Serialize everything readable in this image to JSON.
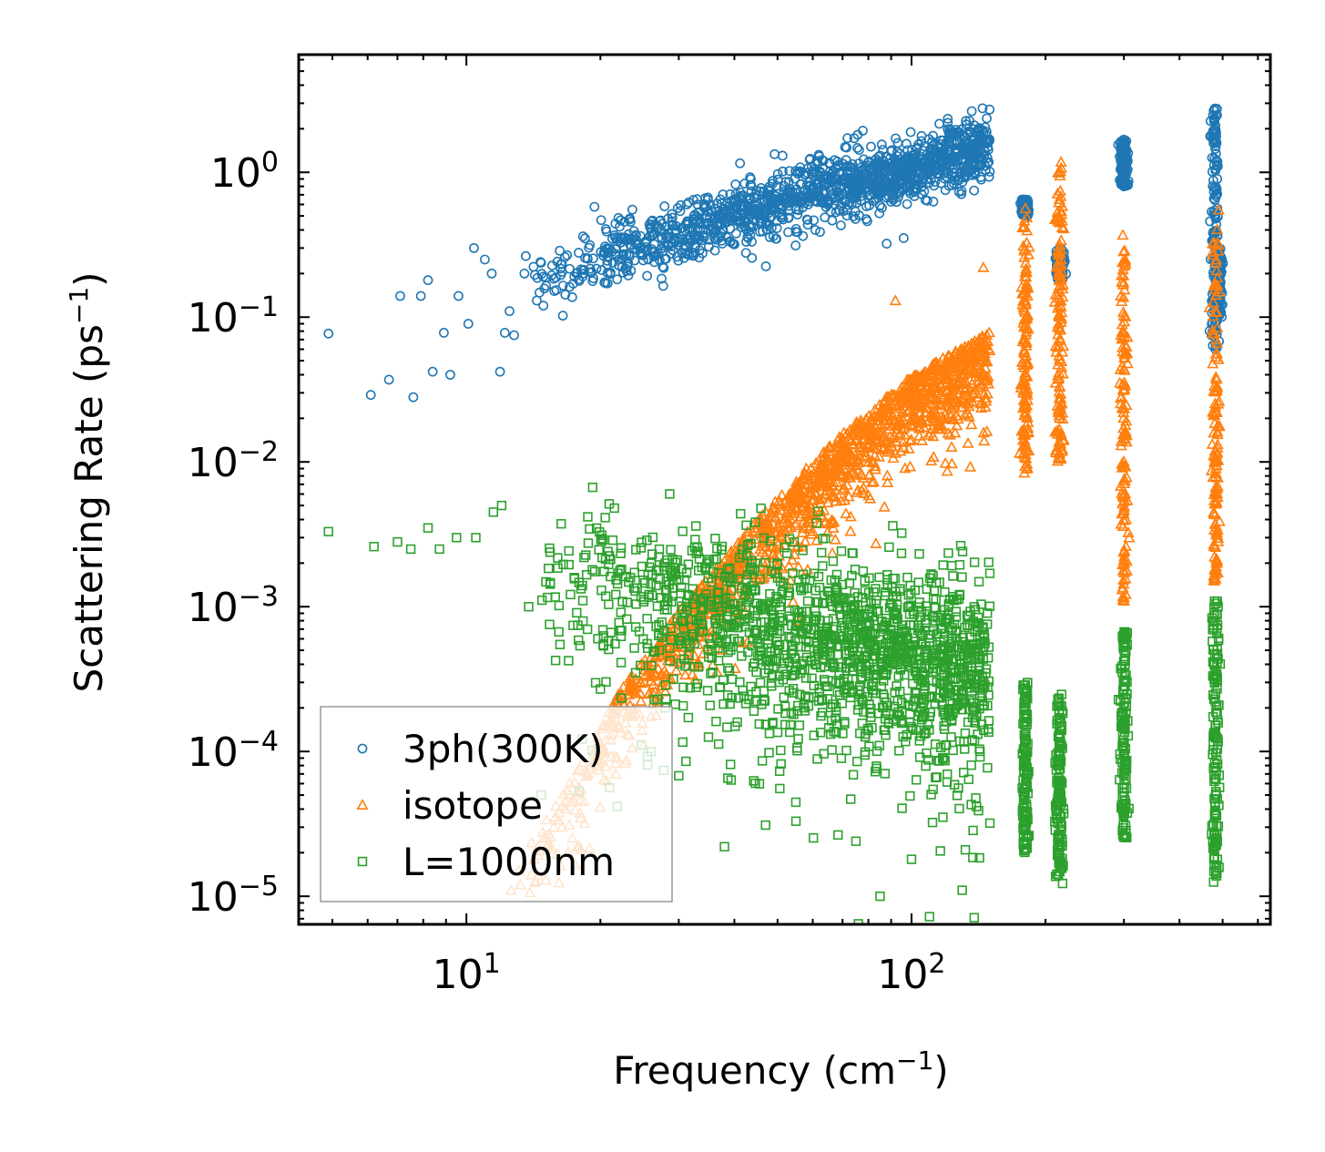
{
  "chart_data": {
    "type": "scatter",
    "title": "",
    "xlabel": "Frequency (cm",
    "xlabel_exp": "−1",
    "xlabel_end": ")",
    "ylabel": "Scattering Rate (ps",
    "ylabel_exp": "−1",
    "ylabel_end": ")",
    "x_scale": "log",
    "y_scale": "log",
    "xlim": [
      4.2,
      640
    ],
    "ylim": [
      6.4e-06,
      6.5
    ],
    "x_ticks": [
      {
        "value": 10,
        "base": "10",
        "exp": "1"
      },
      {
        "value": 100,
        "base": "10",
        "exp": "2"
      }
    ],
    "y_ticks": [
      {
        "value": 1,
        "base": "10",
        "exp": "0"
      },
      {
        "value": 0.1,
        "base": "10",
        "exp": "−1"
      },
      {
        "value": 0.01,
        "base": "10",
        "exp": "−2"
      },
      {
        "value": 0.001,
        "base": "10",
        "exp": "−3"
      },
      {
        "value": 0.0001,
        "base": "10",
        "exp": "−4"
      },
      {
        "value": 1e-05,
        "base": "10",
        "exp": "−5"
      }
    ],
    "legend_position": "lower-left",
    "series": [
      {
        "name": "3ph(300K)",
        "marker": "circle",
        "color": "#1f77b4",
        "trend": [
          [
            5,
            0.08
          ],
          [
            8,
            0.1
          ],
          [
            12,
            0.15
          ],
          [
            20,
            0.25
          ],
          [
            35,
            0.45
          ],
          [
            60,
            0.75
          ],
          [
            100,
            1.0
          ],
          [
            150,
            1.6
          ]
        ],
        "clusters": [
          {
            "x": 180,
            "y_range": [
              0.5,
              0.65
            ]
          },
          {
            "x": 216,
            "y_range": [
              0.18,
              0.3
            ]
          },
          {
            "x": 300,
            "y_range": [
              0.8,
              1.7
            ]
          },
          {
            "x": 480,
            "y_range": [
              0.06,
              2.8
            ]
          },
          {
            "x": 490,
            "y_range": [
              0.1,
              0.3
            ]
          }
        ],
        "points": [
          [
            4.9,
            0.077
          ],
          [
            6.1,
            0.029
          ],
          [
            6.7,
            0.037
          ],
          [
            7.1,
            0.14
          ],
          [
            7.6,
            0.028
          ],
          [
            7.9,
            0.14
          ],
          [
            8.2,
            0.18
          ],
          [
            8.4,
            0.042
          ],
          [
            8.9,
            0.078
          ],
          [
            9.2,
            0.04
          ],
          [
            9.6,
            0.14
          ],
          [
            10.1,
            0.09
          ],
          [
            10.4,
            0.3
          ],
          [
            11.0,
            0.25
          ],
          [
            11.4,
            0.2
          ],
          [
            11.9,
            0.042
          ],
          [
            12.2,
            0.078
          ],
          [
            12.5,
            0.11
          ],
          [
            12.8,
            0.075
          ],
          [
            13.5,
            0.2
          ]
        ]
      },
      {
        "name": "isotope",
        "marker": "triangle",
        "color": "#ff7f0e",
        "trend": [
          [
            12.5,
            1.1e-05
          ],
          [
            15,
            2.5e-05
          ],
          [
            18,
            6e-05
          ],
          [
            22,
            0.0002
          ],
          [
            30,
            0.0007
          ],
          [
            45,
            0.003
          ],
          [
            70,
            0.012
          ],
          [
            100,
            0.03
          ],
          [
            150,
            0.06
          ]
        ],
        "clusters": [
          {
            "x": 180,
            "y_range": [
              0.008,
              0.6
            ]
          },
          {
            "x": 215,
            "y_range": [
              0.01,
              1.2
            ]
          },
          {
            "x": 300,
            "y_range": [
              0.001,
              0.5
            ]
          },
          {
            "x": 482,
            "y_range": [
              0.0015,
              0.55
            ]
          }
        ],
        "points": [
          [
            12.6,
            1.1e-05
          ],
          [
            13.2,
            1.2e-05
          ],
          [
            14.0,
            1.4e-05
          ],
          [
            15.2,
            2.2e-05
          ],
          [
            16.4,
            3e-05
          ],
          [
            17.2,
            4.5e-05
          ],
          [
            58,
            0.009
          ],
          [
            92,
            0.13
          ],
          [
            145,
            0.22
          ],
          [
            490,
            0.55
          ]
        ]
      },
      {
        "name": "L=1000nm",
        "marker": "square",
        "color": "#2ca02c",
        "trend": [
          [
            5,
            0.0032
          ],
          [
            10,
            0.0028
          ],
          [
            20,
            0.0015
          ],
          [
            40,
            0.0009
          ],
          [
            80,
            0.0006
          ],
          [
            150,
            0.0004
          ]
        ],
        "clusters": [
          {
            "x": 180,
            "y_range": [
              2e-05,
              0.0003
            ]
          },
          {
            "x": 215,
            "y_range": [
              1.2e-05,
              0.00025
            ]
          },
          {
            "x": 300,
            "y_range": [
              2.5e-05,
              0.0007
            ]
          },
          {
            "x": 482,
            "y_range": [
              1.2e-05,
              0.0012
            ]
          }
        ],
        "points": [
          [
            4.9,
            0.0033
          ],
          [
            6.2,
            0.0026
          ],
          [
            7.0,
            0.0028
          ],
          [
            7.5,
            0.0025
          ],
          [
            8.2,
            0.0035
          ],
          [
            8.7,
            0.0025
          ],
          [
            9.5,
            0.003
          ],
          [
            10.5,
            0.003
          ],
          [
            11.5,
            0.0045
          ],
          [
            12.0,
            0.005
          ],
          [
            13.8,
            0.001
          ],
          [
            20.0,
            0.00027
          ],
          [
            24.0,
            0.00035
          ],
          [
            26.0,
            0.0001
          ],
          [
            28.0,
            0.0002
          ],
          [
            30.0,
            6.8e-05
          ],
          [
            38.0,
            2.2e-05
          ],
          [
            47.0,
            3.1e-05
          ],
          [
            55.0,
            3.3e-05
          ],
          [
            75.0,
            2.4e-05
          ],
          [
            85.0,
            1e-05
          ],
          [
            100.0,
            1.8e-05
          ],
          [
            130.0,
            1.1e-05
          ],
          [
            150.0,
            3.2e-05
          ]
        ]
      }
    ]
  }
}
